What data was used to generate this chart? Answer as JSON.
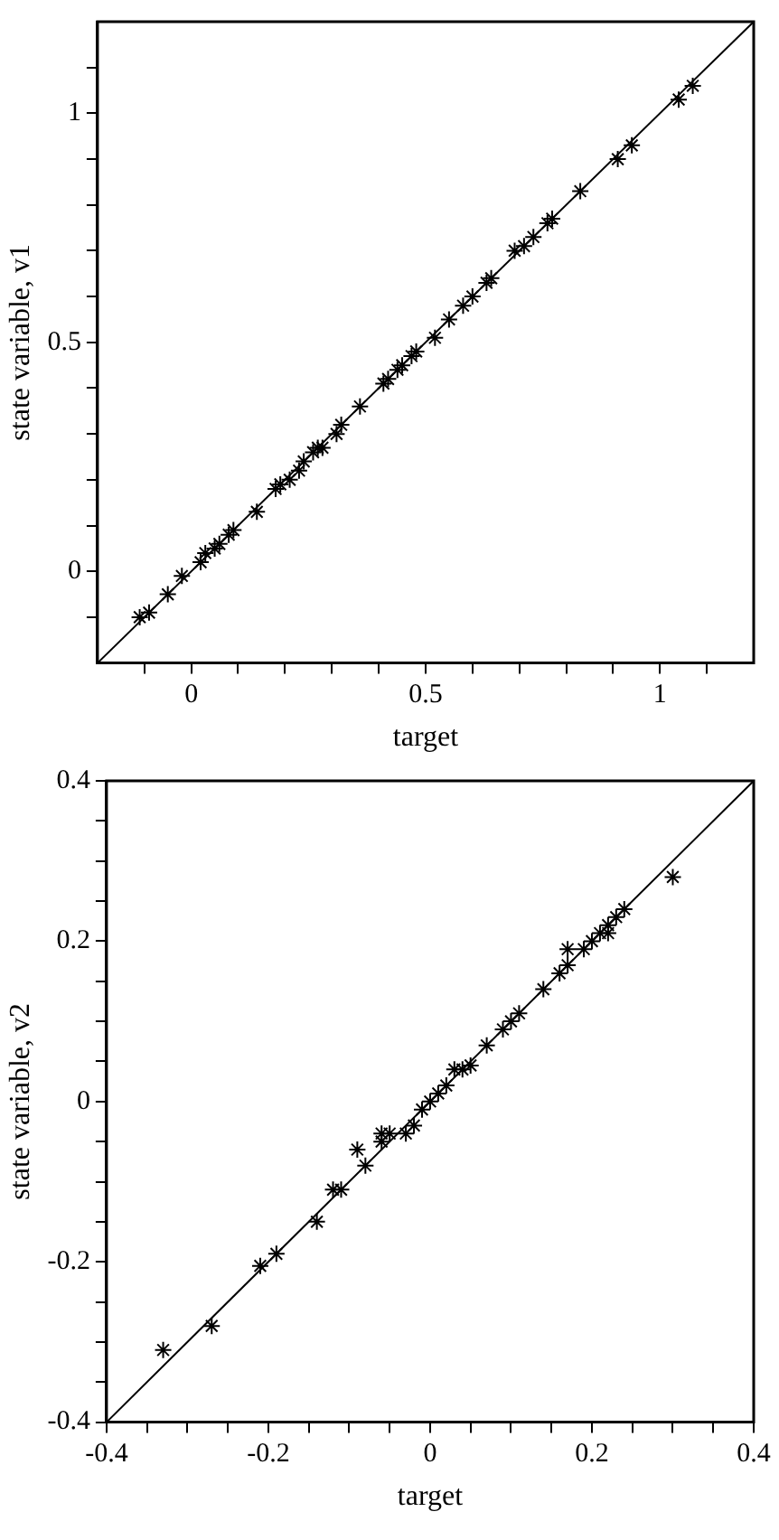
{
  "chart_data": [
    {
      "type": "scatter",
      "xlabel": "target",
      "ylabel": "state variable, v1",
      "marker": "cross",
      "grid": false,
      "legend": false,
      "xlim": [
        -0.2,
        1.2
      ],
      "ylim": [
        -0.2,
        1.2
      ],
      "xticks": [
        {
          "value": -0.1,
          "label": null
        },
        0,
        {
          "value": 0.1,
          "label": null
        },
        {
          "value": 0.2,
          "label": null
        },
        {
          "value": 0.3,
          "label": null
        },
        {
          "value": 0.4,
          "label": null
        },
        0.5,
        {
          "value": 0.6,
          "label": null
        },
        {
          "value": 0.7,
          "label": null
        },
        {
          "value": 0.8,
          "label": null
        },
        {
          "value": 0.9,
          "label": null
        },
        1,
        {
          "value": 1.1,
          "label": null
        }
      ],
      "yticks": [
        {
          "value": -0.1,
          "label": null
        },
        0,
        {
          "value": 0.1,
          "label": null
        },
        {
          "value": 0.2,
          "label": null
        },
        {
          "value": 0.3,
          "label": null
        },
        {
          "value": 0.4,
          "label": null
        },
        0.5,
        {
          "value": 0.6,
          "label": null
        },
        {
          "value": 0.7,
          "label": null
        },
        {
          "value": 0.8,
          "label": null
        },
        {
          "value": 0.9,
          "label": null
        },
        1,
        {
          "value": 1.1,
          "label": null
        }
      ],
      "series": [
        {
          "type": "scatter",
          "color": "#000000",
          "x": [
            -0.11,
            -0.09,
            -0.05,
            -0.02,
            0.02,
            0.03,
            0.05,
            0.06,
            0.08,
            0.09,
            0.14,
            0.18,
            0.19,
            0.21,
            0.23,
            0.24,
            0.26,
            0.27,
            0.28,
            0.31,
            0.32,
            0.36,
            0.41,
            0.42,
            0.44,
            0.45,
            0.47,
            0.48,
            0.52,
            0.55,
            0.58,
            0.6,
            0.63,
            0.64,
            0.69,
            0.71,
            0.73,
            0.76,
            0.77,
            0.83,
            0.91,
            0.94,
            1.04,
            1.07
          ],
          "values": [
            -0.1,
            -0.09,
            -0.05,
            -0.01,
            0.02,
            0.04,
            0.05,
            0.06,
            0.08,
            0.09,
            0.13,
            0.18,
            0.19,
            0.2,
            0.22,
            0.24,
            0.26,
            0.27,
            0.27,
            0.3,
            0.32,
            0.36,
            0.41,
            0.42,
            0.44,
            0.45,
            0.47,
            0.48,
            0.51,
            0.55,
            0.58,
            0.6,
            0.63,
            0.64,
            0.7,
            0.71,
            0.73,
            0.76,
            0.77,
            0.83,
            0.9,
            0.93,
            1.03,
            1.06
          ]
        },
        {
          "type": "line",
          "color": "#000000",
          "marker": "none",
          "x": [
            -0.2,
            1.2
          ],
          "values": [
            -0.2,
            1.2
          ]
        }
      ]
    },
    {
      "type": "scatter",
      "xlabel": "target",
      "ylabel": "state variable, v2",
      "marker": "cross",
      "grid": false,
      "legend": false,
      "xlim": [
        -0.4,
        0.4
      ],
      "ylim": [
        -0.4,
        0.4
      ],
      "xticks": [
        -0.4,
        {
          "value": -0.35,
          "label": null
        },
        {
          "value": -0.3,
          "label": null
        },
        {
          "value": -0.25,
          "label": null
        },
        -0.2,
        {
          "value": -0.15,
          "label": null
        },
        {
          "value": -0.1,
          "label": null
        },
        {
          "value": -0.05,
          "label": null
        },
        0,
        {
          "value": 0.05,
          "label": null
        },
        {
          "value": 0.1,
          "label": null
        },
        {
          "value": 0.15,
          "label": null
        },
        0.2,
        {
          "value": 0.25,
          "label": null
        },
        {
          "value": 0.3,
          "label": null
        },
        {
          "value": 0.35,
          "label": null
        },
        0.4
      ],
      "yticks": [
        -0.4,
        {
          "value": -0.35,
          "label": null
        },
        {
          "value": -0.3,
          "label": null
        },
        {
          "value": -0.25,
          "label": null
        },
        -0.2,
        {
          "value": -0.15,
          "label": null
        },
        {
          "value": -0.1,
          "label": null
        },
        {
          "value": -0.05,
          "label": null
        },
        0,
        {
          "value": 0.05,
          "label": null
        },
        {
          "value": 0.1,
          "label": null
        },
        {
          "value": 0.15,
          "label": null
        },
        0.2,
        {
          "value": 0.25,
          "label": null
        },
        {
          "value": 0.3,
          "label": null
        },
        {
          "value": 0.35,
          "label": null
        },
        0.4
      ],
      "series": [
        {
          "type": "scatter",
          "color": "#000000",
          "x": [
            -0.33,
            -0.27,
            -0.21,
            -0.19,
            -0.14,
            -0.12,
            -0.11,
            -0.09,
            -0.08,
            -0.06,
            -0.06,
            -0.05,
            -0.03,
            -0.02,
            -0.01,
            0,
            0.01,
            0.02,
            0.03,
            0.04,
            0.05,
            0.07,
            0.09,
            0.1,
            0.11,
            0.14,
            0.16,
            0.17,
            0.17,
            0.19,
            0.2,
            0.21,
            0.22,
            0.22,
            0.23,
            0.24,
            0.3
          ],
          "values": [
            -0.31,
            -0.28,
            -0.205,
            -0.19,
            -0.15,
            -0.11,
            -0.11,
            -0.06,
            -0.08,
            -0.05,
            -0.04,
            -0.04,
            -0.04,
            -0.03,
            -0.01,
            0,
            0.01,
            0.02,
            0.04,
            0.04,
            0.045,
            0.07,
            0.09,
            0.1,
            0.11,
            0.14,
            0.16,
            0.19,
            0.17,
            0.19,
            0.2,
            0.21,
            0.21,
            0.22,
            0.23,
            0.24,
            0.28
          ]
        },
        {
          "type": "line",
          "color": "#000000",
          "marker": "none",
          "x": [
            -0.4,
            0.4
          ],
          "values": [
            -0.4,
            0.4
          ]
        }
      ]
    }
  ]
}
